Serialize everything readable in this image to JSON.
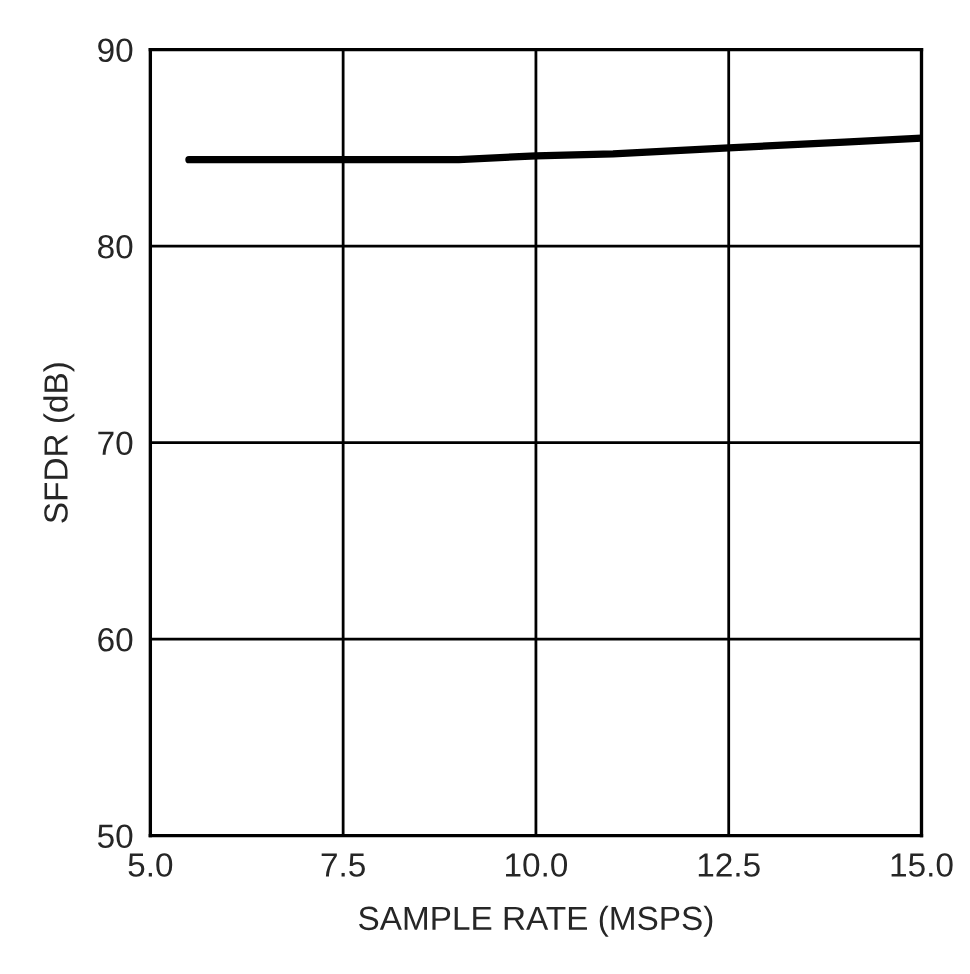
{
  "chart_data": {
    "type": "line",
    "xlabel": "SAMPLE RATE (MSPS)",
    "ylabel": "SFDR (dB)",
    "x": [
      5.5,
      7.5,
      9.0,
      10.0,
      11.0,
      12.5,
      14.0,
      15.0
    ],
    "series": [
      {
        "color": "#000000",
        "values": [
          84.4,
          84.4,
          84.4,
          84.6,
          84.7,
          85.0,
          85.3,
          85.5
        ]
      }
    ],
    "xlim": [
      5.0,
      15.0
    ],
    "ylim": [
      50,
      90
    ],
    "xticks": [
      {
        "value": 5.0,
        "label": "5.0"
      },
      {
        "value": 7.5,
        "label": "7.5"
      },
      {
        "value": 10.0,
        "label": "10.0"
      },
      {
        "value": 12.5,
        "label": "12.5"
      },
      {
        "value": 15.0,
        "label": "15.0"
      }
    ],
    "yticks": [
      50,
      60,
      70,
      80,
      90
    ],
    "grid": true
  }
}
